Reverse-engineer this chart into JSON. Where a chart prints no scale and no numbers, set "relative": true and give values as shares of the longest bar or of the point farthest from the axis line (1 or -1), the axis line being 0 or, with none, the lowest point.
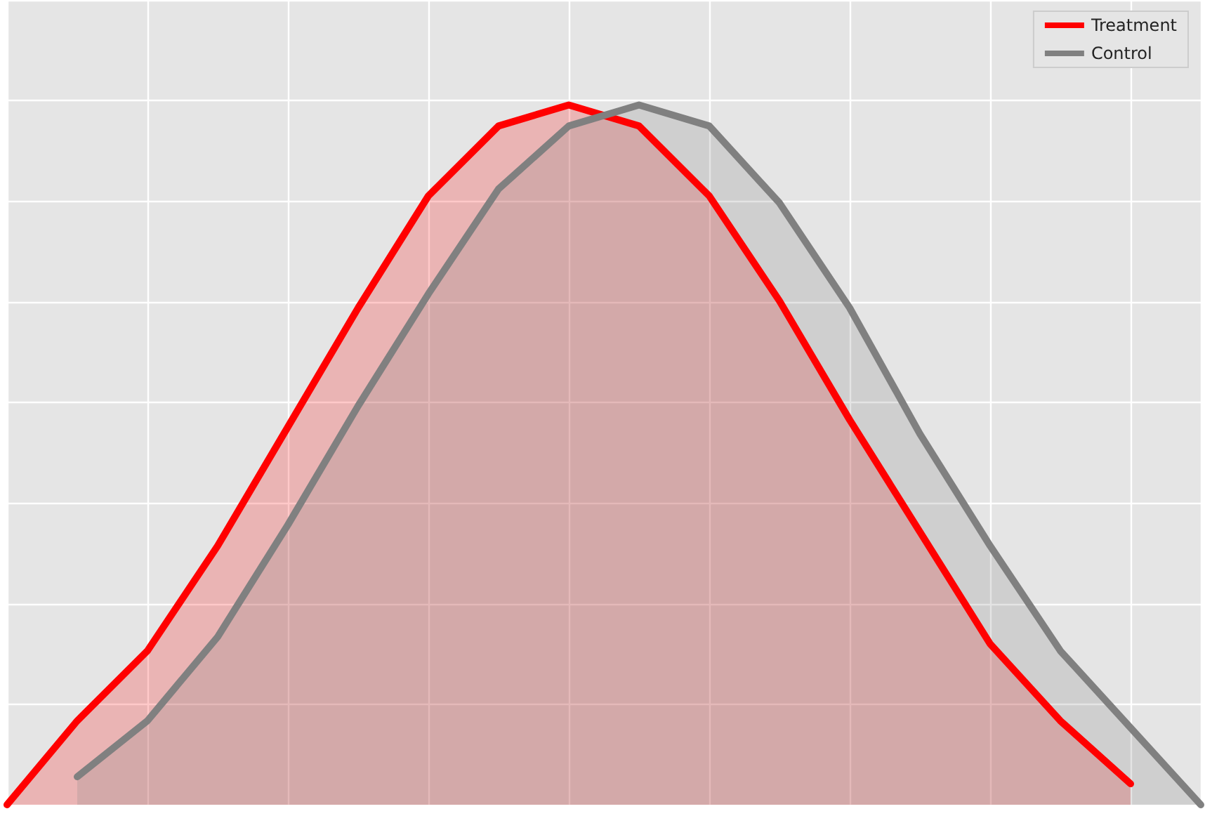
{
  "chart_data": {
    "type": "area",
    "relative": true,
    "grid": true,
    "legend": "top right",
    "categories": [
      null,
      null,
      null,
      null,
      null,
      null,
      null,
      null,
      null,
      null,
      null,
      null,
      null,
      null,
      null,
      null,
      null,
      null
    ],
    "series": [
      {
        "name": "Treatment",
        "color": "#ff0000",
        "values": [
          0,
          0.12,
          0.22,
          0.37,
          0.54,
          0.71,
          0.87,
          0.97,
          1.0,
          0.97,
          0.87,
          0.72,
          0.55,
          0.39,
          0.23,
          0.12,
          0.03,
          null
        ]
      },
      {
        "name": "Control",
        "color": "#808080",
        "values": [
          null,
          0.04,
          0.12,
          0.24,
          0.4,
          0.57,
          0.73,
          0.88,
          0.97,
          1.0,
          0.97,
          0.86,
          0.71,
          0.53,
          0.37,
          0.22,
          0.11,
          0
        ]
      }
    ]
  }
}
